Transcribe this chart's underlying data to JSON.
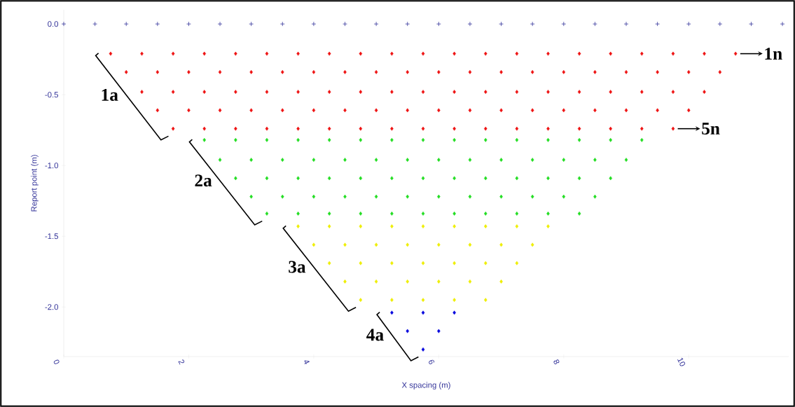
{
  "chart_data": {
    "type": "scatter",
    "xlabel": "X spacing (m)",
    "ylabel": "Report point (m)",
    "xlim": [
      0,
      11.6
    ],
    "ylim": [
      -2.35,
      0.1
    ],
    "xticks": [
      0,
      2,
      4,
      6,
      8,
      10
    ],
    "yticks": [
      {
        "value": 0,
        "label": "0.0"
      },
      {
        "value": -0.5,
        "label": "-0.5"
      },
      {
        "value": -1,
        "label": "-1.0"
      },
      {
        "value": -1.5,
        "label": "-1.5"
      },
      {
        "value": -2,
        "label": "-2.0"
      }
    ],
    "grid": false,
    "series": [
      {
        "color": "#333399",
        "marker": "cross",
        "x": [
          0,
          0.5,
          1,
          1.5,
          2,
          2.5,
          3,
          3.5,
          4,
          4.5,
          5,
          5.5,
          6,
          6.5,
          7,
          7.5,
          8,
          8.5,
          9,
          9.5,
          10,
          10.5,
          11,
          11.5
        ],
        "values": [
          0,
          0,
          0,
          0,
          0,
          0,
          0,
          0,
          0,
          0,
          0,
          0,
          0,
          0,
          0,
          0,
          0,
          0,
          0,
          0,
          0,
          0,
          0,
          0
        ]
      },
      {
        "color": "#ee1111",
        "marker": "diamond",
        "x": [
          0.75,
          1.25,
          1.75,
          2.25,
          2.75,
          3.25,
          3.75,
          4.25,
          4.75,
          5.25,
          5.75,
          6.25,
          6.75,
          7.25,
          7.75,
          8.25,
          8.75,
          9.25,
          9.75,
          10.25,
          10.75,
          1,
          1.5,
          2,
          2.5,
          3,
          3.5,
          4,
          4.5,
          5,
          5.5,
          6,
          6.5,
          7,
          7.5,
          8,
          8.5,
          9,
          9.5,
          10,
          10.5,
          1.25,
          1.75,
          2.25,
          2.75,
          3.25,
          3.75,
          4.25,
          4.75,
          5.25,
          5.75,
          6.25,
          6.75,
          7.25,
          7.75,
          8.25,
          8.75,
          9.25,
          9.75,
          10.25,
          1.5,
          2,
          2.5,
          3,
          3.5,
          4,
          4.5,
          5,
          5.5,
          6,
          6.5,
          7,
          7.5,
          8,
          8.5,
          9,
          9.5,
          10,
          1.75,
          2.25,
          2.75,
          3.25,
          3.75,
          4.25,
          4.75,
          5.25,
          5.75,
          6.25,
          6.75,
          7.25,
          7.75,
          8.25,
          8.75,
          9.25,
          9.75
        ],
        "values": [
          -0.21,
          -0.21,
          -0.21,
          -0.21,
          -0.21,
          -0.21,
          -0.21,
          -0.21,
          -0.21,
          -0.21,
          -0.21,
          -0.21,
          -0.21,
          -0.21,
          -0.21,
          -0.21,
          -0.21,
          -0.21,
          -0.21,
          -0.21,
          -0.21,
          -0.34,
          -0.34,
          -0.34,
          -0.34,
          -0.34,
          -0.34,
          -0.34,
          -0.34,
          -0.34,
          -0.34,
          -0.34,
          -0.34,
          -0.34,
          -0.34,
          -0.34,
          -0.34,
          -0.34,
          -0.34,
          -0.34,
          -0.34,
          -0.48,
          -0.48,
          -0.48,
          -0.48,
          -0.48,
          -0.48,
          -0.48,
          -0.48,
          -0.48,
          -0.48,
          -0.48,
          -0.48,
          -0.48,
          -0.48,
          -0.48,
          -0.48,
          -0.48,
          -0.48,
          -0.48,
          -0.61,
          -0.61,
          -0.61,
          -0.61,
          -0.61,
          -0.61,
          -0.61,
          -0.61,
          -0.61,
          -0.61,
          -0.61,
          -0.61,
          -0.61,
          -0.61,
          -0.61,
          -0.61,
          -0.61,
          -0.61,
          -0.74,
          -0.74,
          -0.74,
          -0.74,
          -0.74,
          -0.74,
          -0.74,
          -0.74,
          -0.74,
          -0.74,
          -0.74,
          -0.74,
          -0.74,
          -0.74,
          -0.74,
          -0.74,
          -0.74
        ]
      },
      {
        "color": "#22dd22",
        "marker": "diamond",
        "x": [
          2.25,
          2.75,
          3.25,
          3.75,
          4.25,
          4.75,
          5.25,
          5.75,
          6.25,
          6.75,
          7.25,
          7.75,
          8.25,
          8.75,
          9.25,
          2.5,
          3,
          3.5,
          4,
          4.5,
          5,
          5.5,
          6,
          6.5,
          7,
          7.5,
          8,
          8.5,
          9,
          2.75,
          3.25,
          3.75,
          4.25,
          4.75,
          5.25,
          5.75,
          6.25,
          6.75,
          7.25,
          7.75,
          8.25,
          8.75,
          3,
          3.5,
          4,
          4.5,
          5,
          5.5,
          6,
          6.5,
          7,
          7.5,
          8,
          8.5,
          3.25,
          3.75,
          4.25,
          4.75,
          5.25,
          5.75,
          6.25,
          6.75,
          7.25,
          7.75,
          8.25
        ],
        "values": [
          -0.82,
          -0.82,
          -0.82,
          -0.82,
          -0.82,
          -0.82,
          -0.82,
          -0.82,
          -0.82,
          -0.82,
          -0.82,
          -0.82,
          -0.82,
          -0.82,
          -0.82,
          -0.96,
          -0.96,
          -0.96,
          -0.96,
          -0.96,
          -0.96,
          -0.96,
          -0.96,
          -0.96,
          -0.96,
          -0.96,
          -0.96,
          -0.96,
          -0.96,
          -1.09,
          -1.09,
          -1.09,
          -1.09,
          -1.09,
          -1.09,
          -1.09,
          -1.09,
          -1.09,
          -1.09,
          -1.09,
          -1.09,
          -1.09,
          -1.22,
          -1.22,
          -1.22,
          -1.22,
          -1.22,
          -1.22,
          -1.22,
          -1.22,
          -1.22,
          -1.22,
          -1.22,
          -1.22,
          -1.34,
          -1.34,
          -1.34,
          -1.34,
          -1.34,
          -1.34,
          -1.34,
          -1.34,
          -1.34,
          -1.34,
          -1.34
        ]
      },
      {
        "color": "#eeee00",
        "marker": "diamond",
        "x": [
          3.75,
          4.25,
          4.75,
          5.25,
          5.75,
          6.25,
          6.75,
          7.25,
          7.75,
          4,
          4.5,
          5,
          5.5,
          6,
          6.5,
          7,
          7.5,
          4.25,
          4.75,
          5.25,
          5.75,
          6.25,
          6.75,
          7.25,
          4.5,
          5,
          5.5,
          6,
          6.5,
          7,
          4.75,
          5.25,
          5.75,
          6.25,
          6.75
        ],
        "values": [
          -1.43,
          -1.43,
          -1.43,
          -1.43,
          -1.43,
          -1.43,
          -1.43,
          -1.43,
          -1.43,
          -1.56,
          -1.56,
          -1.56,
          -1.56,
          -1.56,
          -1.56,
          -1.56,
          -1.56,
          -1.69,
          -1.69,
          -1.69,
          -1.69,
          -1.69,
          -1.69,
          -1.69,
          -1.82,
          -1.82,
          -1.82,
          -1.82,
          -1.82,
          -1.82,
          -1.95,
          -1.95,
          -1.95,
          -1.95,
          -1.95
        ]
      },
      {
        "color": "#0000dd",
        "marker": "diamond",
        "x": [
          5.25,
          5.75,
          6.25,
          5.5,
          6,
          5.75
        ],
        "values": [
          -2.04,
          -2.04,
          -2.04,
          -2.17,
          -2.17,
          -2.3
        ]
      }
    ],
    "annotations": [
      "1a",
      "2a",
      "3a",
      "4a",
      {
        "text": "1n",
        "x": 10.75,
        "y": -0.21
      },
      {
        "text": "5n",
        "x": 9.75,
        "y": -0.74
      }
    ]
  }
}
